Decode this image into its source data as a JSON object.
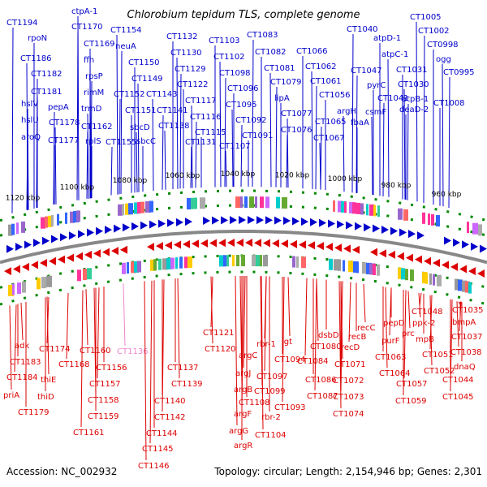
{
  "title": "Chlorobium tepidum TLS, complete genome",
  "footer": {
    "accession": "Accession: NC_002932",
    "summary": "Topology: circular; Length: 2,154,946 bp; Genes: 2,301"
  },
  "colors": {
    "forward": "#0000cc",
    "reverse": "#dd0000",
    "highlight": "#ee88cc",
    "backbone": "#888888",
    "tick": "#008800"
  },
  "kbp_labels": [
    "1120 kbp",
    "1100 kbp",
    "1080 kbp",
    "1060 kbp",
    "1040 kbp",
    "1020 kbp",
    "1000 kbp",
    "980 kbp",
    "960 kbp"
  ],
  "forward_genes": [
    "CT1194",
    "rpoN",
    "CT1186",
    "CT1182",
    "CT1181",
    "hslV",
    "pepA",
    "hslU",
    "CT1178",
    "aroQ",
    "CT1177",
    "ctpA-1",
    "CT1170",
    "CT1169",
    "ffh",
    "rpsP",
    "rimM",
    "trmD",
    "CT1162",
    "rplS",
    "CT1154",
    "neuA",
    "CT1150",
    "CT1149",
    "CT1152",
    "CT1151",
    "sbcD",
    "CT1155",
    "sbcC",
    "CT1143",
    "CT1141",
    "CT1132",
    "CT1130",
    "CT1129",
    "CT1122",
    "CT1117",
    "CT1116",
    "CT1115",
    "CT1138",
    "CT1131",
    "CT1103",
    "CT1102",
    "CT1098",
    "CT1096",
    "CT1095",
    "CT1092",
    "CT1091",
    "CT1107",
    "CT1083",
    "CT1082",
    "CT1081",
    "CT1079",
    "lipA",
    "CT1077",
    "CT1076",
    "CT1066",
    "CT1062",
    "CT1061",
    "CT1056",
    "argH",
    "CT1065",
    "fbaA",
    "CT1067",
    "CT1040",
    "atpD-1",
    "atpC-1",
    "CT1047",
    "pyrC",
    "csmF",
    "CT1041",
    "CT1031",
    "CT1030",
    "atpB-1",
    "deaD-2",
    "CT1005",
    "CT1002",
    "CT0998",
    "ogg",
    "CT0995",
    "CT1008"
  ],
  "reverse_genes": [
    "adk",
    "CT1183",
    "CT1184",
    "priA",
    "CT1179",
    "CT1174",
    "thiE",
    "thiD",
    "CT1168",
    "CT1160",
    "CT1156",
    "CT1157",
    "CT1158",
    "CT1159",
    "CT1161",
    "CT1136",
    "CT1144",
    "CT1145",
    "CT1146",
    "CT1140",
    "CT1142",
    "CT1139",
    "CT1137",
    "CT1121",
    "CT1120",
    "argC",
    "argJ",
    "argB",
    "CT1108",
    "argF",
    "argG",
    "argR",
    "rbr-1",
    "lgt",
    "CT1094",
    "CT1097",
    "CT1099",
    "rbr-2",
    "CT1093",
    "CT1104",
    "dsbD",
    "CT1084",
    "CT1080",
    "CT1086",
    "CT1087",
    "CT1071",
    "CT1072",
    "CT1073",
    "CT1074",
    "recB",
    "recD",
    "recC",
    "CT1063",
    "purF",
    "CT1064",
    "pepD",
    "CT1057",
    "prc",
    "CT1059",
    "CT1048",
    "ppk-2",
    "mpB",
    "CT1051",
    "CT1052",
    "CT1044",
    "CT1045",
    "CT1035",
    "bmpA",
    "CT1037",
    "CT1038",
    "dnaQ"
  ]
}
